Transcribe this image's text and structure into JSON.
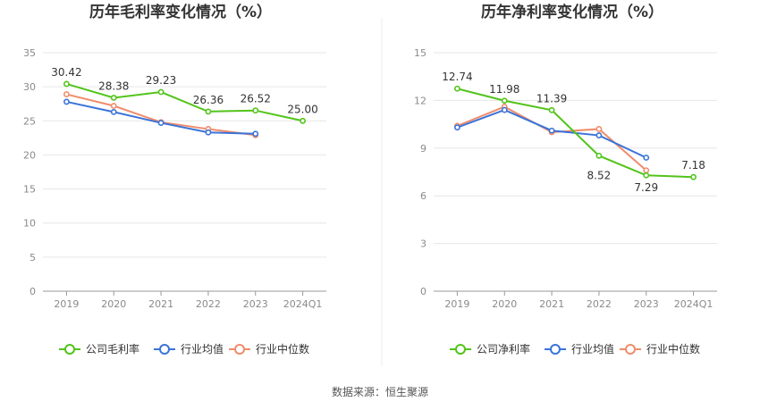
{
  "source": "数据来源：恒生聚源",
  "chart_data": [
    {
      "type": "line",
      "title": "历年毛利率变化情况（%）",
      "categories": [
        "2019",
        "2020",
        "2021",
        "2022",
        "2023",
        "2024Q1"
      ],
      "ylim": [
        0,
        35
      ],
      "yticks": [
        0,
        5,
        10,
        15,
        20,
        25,
        30,
        35
      ],
      "grid": true,
      "legend_position": "bottom",
      "series": [
        {
          "name": "公司毛利率",
          "color": "#52c41a",
          "values": [
            30.42,
            28.38,
            29.23,
            26.36,
            26.52,
            25.0
          ],
          "labels": [
            "30.42",
            "28.38",
            "29.23",
            "26.36",
            "26.52",
            "25.00"
          ]
        },
        {
          "name": "行业均值",
          "color": "#3b73d9",
          "values": [
            27.8,
            26.3,
            24.7,
            23.3,
            23.1,
            null
          ]
        },
        {
          "name": "行业中位数",
          "color": "#f08c6c",
          "values": [
            28.9,
            27.2,
            24.8,
            23.8,
            22.9,
            null
          ]
        }
      ]
    },
    {
      "type": "line",
      "title": "历年净利率变化情况（%）",
      "categories": [
        "2019",
        "2020",
        "2021",
        "2022",
        "2023",
        "2024Q1"
      ],
      "ylim": [
        0,
        15
      ],
      "yticks": [
        0,
        3,
        6,
        9,
        12,
        15
      ],
      "grid": true,
      "legend_position": "bottom",
      "series": [
        {
          "name": "公司净利率",
          "color": "#52c41a",
          "values": [
            12.74,
            11.98,
            11.39,
            8.52,
            7.29,
            7.18
          ],
          "labels": [
            "12.74",
            "11.98",
            "11.39",
            "8.52",
            "7.29",
            "7.18"
          ]
        },
        {
          "name": "行业均值",
          "color": "#3b73d9",
          "values": [
            10.3,
            11.4,
            10.1,
            9.8,
            8.4,
            null
          ]
        },
        {
          "name": "行业中位数",
          "color": "#f08c6c",
          "values": [
            10.4,
            11.6,
            10.0,
            10.2,
            7.6,
            null
          ]
        }
      ]
    }
  ]
}
